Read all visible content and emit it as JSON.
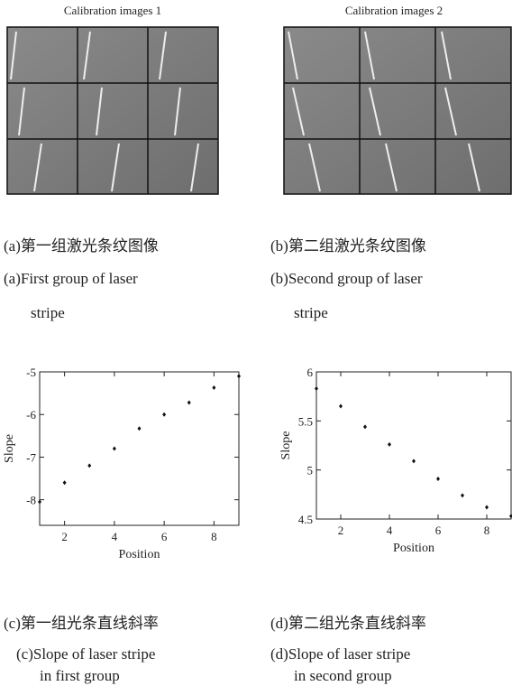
{
  "images": [
    {
      "title": "Calibration images 1"
    },
    {
      "title": "Calibration images 2"
    }
  ],
  "captions": [
    {
      "zh": "(a)第一组激光条纹图像",
      "en": [
        "(a)First group of laser",
        "stripe"
      ]
    },
    {
      "zh": "(b)第二组激光条纹图像",
      "en": [
        "(b)Second group of laser",
        "stripe"
      ]
    },
    {
      "zh": "(c)第一组光条直线斜率",
      "en": [
        "(c)Slope of laser stripe",
        "in first group"
      ]
    },
    {
      "zh": "(d)第二组光条直线斜率",
      "en": [
        "(d)Slope of laser stripe",
        "in second group"
      ]
    }
  ],
  "chart_data": [
    {
      "type": "scatter",
      "xlabel": "Position",
      "ylabel": "Slope",
      "color": "#111",
      "x": [
        1,
        2,
        3,
        4,
        5,
        6,
        7,
        8,
        9
      ],
      "values": [
        -8.05,
        -7.6,
        -7.2,
        -6.8,
        -6.33,
        -6.0,
        -5.72,
        -5.37,
        -5.1
      ],
      "xlim": [
        1,
        9
      ],
      "ylim": [
        -8.6,
        -5
      ],
      "xticks": [
        2,
        4,
        6,
        8
      ],
      "yticks": [
        -8,
        -7,
        -6,
        -5
      ]
    },
    {
      "type": "scatter",
      "xlabel": "Position",
      "ylabel": "Slope",
      "color": "#111",
      "x": [
        1,
        2,
        3,
        4,
        5,
        6,
        7,
        8,
        9
      ],
      "values": [
        5.83,
        5.65,
        5.44,
        5.26,
        5.09,
        4.91,
        4.74,
        4.62,
        4.53
      ],
      "xlim": [
        1,
        9
      ],
      "ylim": [
        4.5,
        6
      ],
      "xticks": [
        2,
        4,
        6,
        8
      ],
      "yticks": [
        4.5,
        5,
        5.5,
        6
      ]
    }
  ]
}
